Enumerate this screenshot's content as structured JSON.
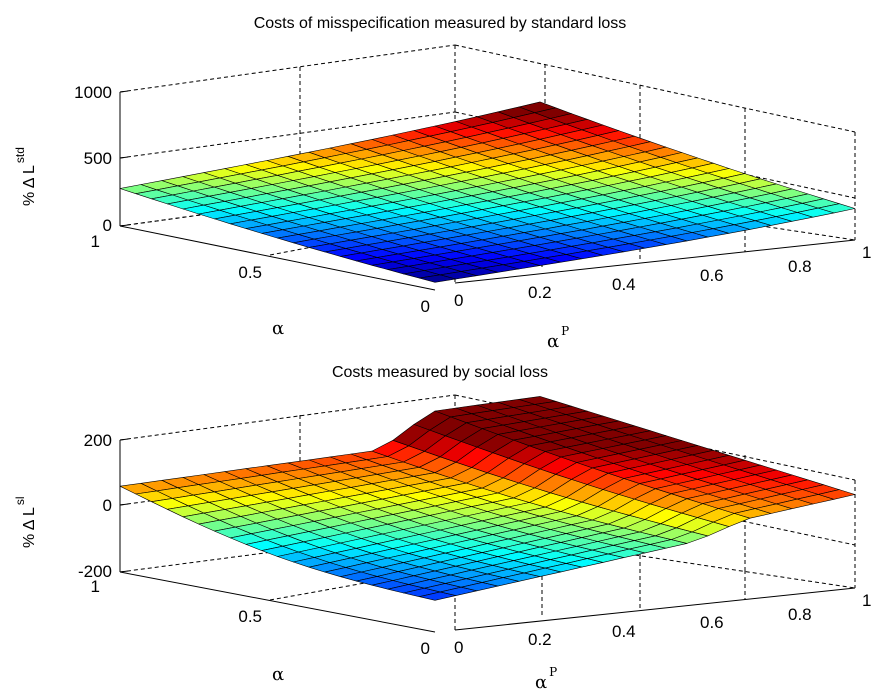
{
  "chart_data": [
    {
      "type": "surface",
      "title": "Costs of misspecification measured by standard loss",
      "xlabel": "α",
      "ylabel": "α",
      "ylabel_sup": "P",
      "zlabel": "% Δ L",
      "zlabel_sup": "std",
      "xticks": [
        "0",
        "0.5",
        "1"
      ],
      "yticks": [
        "0",
        "0.2",
        "0.4",
        "0.6",
        "0.8",
        "1"
      ],
      "zticks": [
        "0",
        "500",
        "1000"
      ],
      "xlim": [
        0,
        1
      ],
      "ylim": [
        0,
        1
      ],
      "zlim": [
        0,
        1000
      ],
      "grid": true,
      "colormap": "jet",
      "colorRange": [
        0,
        560
      ],
      "surface": {
        "alpha_range": [
          0,
          1
        ],
        "alphaP_range": [
          0,
          1
        ],
        "corner_values": {
          "a0_p0": 5,
          "a1_p0": 280,
          "a0_p1": 180,
          "a1_p1": 550
        },
        "curvature": 55,
        "bowl": 50
      }
    },
    {
      "type": "surface",
      "title": "Costs measured by social loss",
      "xlabel": "α",
      "ylabel": "α",
      "ylabel_sup": "P",
      "zlabel": "% Δ L",
      "zlabel_sup": "sl",
      "xticks": [
        "0",
        "0.5",
        "1"
      ],
      "yticks": [
        "0",
        "0.2",
        "0.4",
        "0.6",
        "0.8",
        "1"
      ],
      "zticks": [
        "-200",
        "0",
        "200"
      ],
      "xlim": [
        0,
        1
      ],
      "ylim": [
        0,
        1
      ],
      "zlim": [
        -200,
        200
      ],
      "grid": true,
      "colormap": "jet",
      "colorRange": [
        -160,
        140
      ],
      "surface": {
        "alpha_range": [
          0,
          1
        ],
        "alphaP_range": [
          0,
          1
        ],
        "corner_values": {
          "a0_p0": -110,
          "a1_p0": 60,
          "a0_p1": 50,
          "a1_p1": 110
        },
        "ridge_height": 95,
        "ridge_start": 0.62
      }
    }
  ]
}
